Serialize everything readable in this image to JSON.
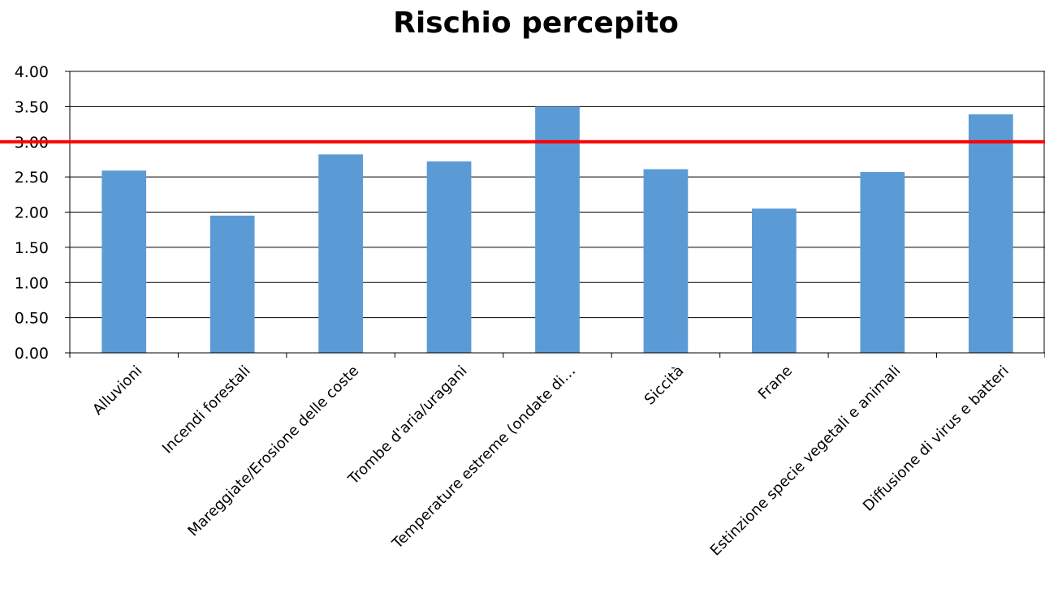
{
  "chart_data": {
    "type": "bar",
    "title": "Rischio percepito",
    "xlabel": "",
    "ylabel": "",
    "ylim": [
      0,
      4
    ],
    "ytick_step": 0.5,
    "ytick_labels": [
      "0.00",
      "0.50",
      "1.00",
      "1.50",
      "2.00",
      "2.50",
      "3.00",
      "3.50",
      "4.00"
    ],
    "grid": true,
    "legend": "none",
    "categories": [
      "Alluvioni",
      "Incendi forestali",
      "Mareggiate/Erosione delle coste",
      "Trombe d'aria/uragani",
      "Temperature  estreme (ondate di…",
      "Siccità",
      "Frane",
      "Estinzione specie vegetali e animali",
      "Diffusione di virus e batteri"
    ],
    "values": [
      2.59,
      1.95,
      2.82,
      2.72,
      3.5,
      2.61,
      2.05,
      2.57,
      3.39
    ],
    "reference_line": {
      "value": 3.0,
      "color": "#ff0000"
    },
    "bar_color": "#5b9bd5"
  }
}
